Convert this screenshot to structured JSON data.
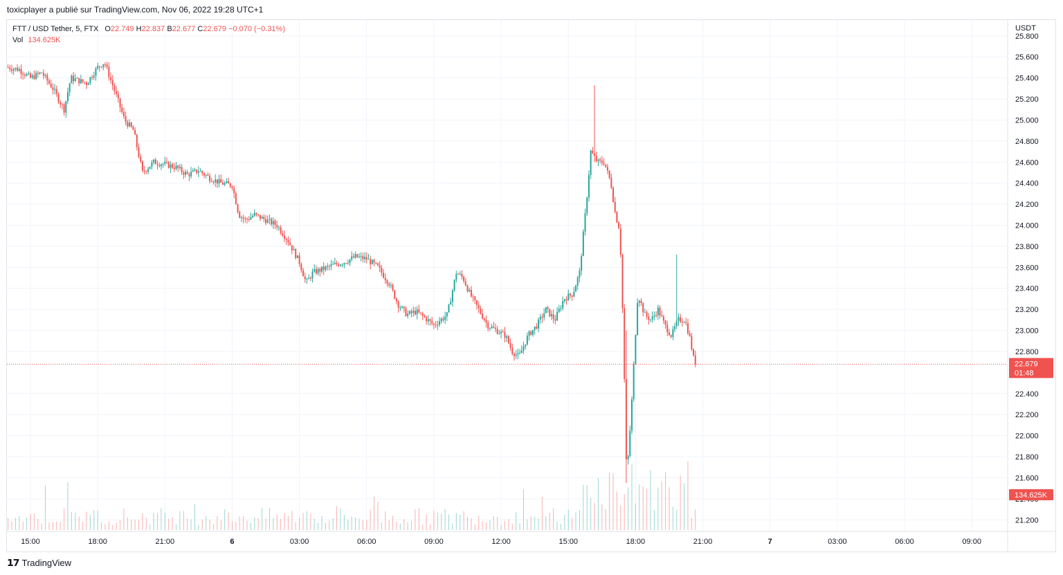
{
  "publisher_line": "toxicplayer a publié sur TradingView.com, Nov 06, 2022 19:28 UTC+1",
  "legend": {
    "symbol": "FTT / USD Tether, 5, FTX",
    "open_label": "O",
    "open": "22.749",
    "high_label": "H",
    "high": "22.837",
    "low_label": "B",
    "low": "22.677",
    "close_label": "C",
    "close": "22.679",
    "change": "−0.070 (−0.31%)",
    "vol_label": "Vol",
    "vol": "134.625K"
  },
  "price_tag": {
    "price": "22.679",
    "countdown": "01:48"
  },
  "volume_tag": "134.625K",
  "footer": {
    "logo": "𝟭𝟳",
    "brand": "TradingView"
  },
  "colors": {
    "up": "#26a69a",
    "down": "#ef5350",
    "grid": "#f0f3fa",
    "axis_text": "#131722",
    "tag_bg": "#ef5350"
  },
  "chart_data": {
    "type": "candlestick",
    "currency": "USDT",
    "y_ticks": [
      "25.800",
      "25.600",
      "25.400",
      "25.200",
      "25.000",
      "24.800",
      "24.600",
      "24.400",
      "24.200",
      "24.000",
      "23.800",
      "23.600",
      "23.400",
      "23.200",
      "23.000",
      "22.800",
      "22.400",
      "22.200",
      "22.000",
      "21.800",
      "21.600",
      "21.400",
      "21.200"
    ],
    "ylim": [
      21.09,
      25.95
    ],
    "x_ticks": [
      "15:00",
      "18:00",
      "21:00",
      "6",
      "03:00",
      "06:00",
      "09:00",
      "12:00",
      "15:00",
      "18:00",
      "21:00",
      "7",
      "03:00",
      "06:00",
      "09:00"
    ],
    "x_tick_hours": [
      15,
      18,
      21,
      24,
      27,
      30,
      33,
      36,
      39,
      42,
      45,
      48,
      51,
      54,
      57
    ],
    "xlim_hours": [
      13.95,
      58.6
    ],
    "last_price": 22.679,
    "price_path": [
      [
        14.0,
        25.5
      ],
      [
        14.5,
        25.48
      ],
      [
        15.0,
        25.4
      ],
      [
        15.5,
        25.45
      ],
      [
        16.0,
        25.3
      ],
      [
        16.5,
        25.1
      ],
      [
        16.8,
        25.4
      ],
      [
        17.5,
        25.35
      ],
      [
        18.0,
        25.5
      ],
      [
        18.3,
        25.55
      ],
      [
        18.8,
        25.25
      ],
      [
        19.2,
        25.0
      ],
      [
        19.6,
        24.9
      ],
      [
        20.0,
        24.5
      ],
      [
        20.5,
        24.6
      ],
      [
        21.0,
        24.58
      ],
      [
        21.5,
        24.55
      ],
      [
        22.0,
        24.48
      ],
      [
        22.5,
        24.52
      ],
      [
        23.0,
        24.45
      ],
      [
        23.5,
        24.4
      ],
      [
        24.0,
        24.38
      ],
      [
        24.3,
        24.1
      ],
      [
        24.6,
        24.05
      ],
      [
        25.0,
        24.1
      ],
      [
        25.5,
        24.05
      ],
      [
        26.0,
        24.0
      ],
      [
        26.5,
        23.85
      ],
      [
        27.0,
        23.65
      ],
      [
        27.3,
        23.45
      ],
      [
        27.6,
        23.55
      ],
      [
        28.0,
        23.58
      ],
      [
        28.5,
        23.62
      ],
      [
        29.0,
        23.65
      ],
      [
        29.5,
        23.7
      ],
      [
        30.0,
        23.68
      ],
      [
        30.5,
        23.6
      ],
      [
        31.0,
        23.45
      ],
      [
        31.4,
        23.25
      ],
      [
        31.8,
        23.15
      ],
      [
        32.2,
        23.18
      ],
      [
        32.6,
        23.12
      ],
      [
        33.0,
        23.05
      ],
      [
        33.3,
        23.1
      ],
      [
        33.6,
        23.15
      ],
      [
        34.0,
        23.55
      ],
      [
        34.3,
        23.5
      ],
      [
        34.6,
        23.35
      ],
      [
        35.0,
        23.2
      ],
      [
        35.4,
        23.05
      ],
      [
        35.8,
        23.0
      ],
      [
        36.2,
        22.95
      ],
      [
        36.5,
        22.8
      ],
      [
        36.8,
        22.75
      ],
      [
        37.2,
        22.95
      ],
      [
        37.6,
        23.05
      ],
      [
        38.0,
        23.2
      ],
      [
        38.4,
        23.1
      ],
      [
        38.8,
        23.3
      ],
      [
        39.2,
        23.35
      ],
      [
        39.5,
        23.55
      ],
      [
        39.8,
        24.2
      ],
      [
        40.0,
        24.7
      ],
      [
        40.3,
        24.6
      ],
      [
        40.6,
        24.6
      ],
      [
        40.9,
        24.4
      ],
      [
        41.1,
        24.1
      ],
      [
        41.3,
        23.95
      ],
      [
        41.45,
        23.0
      ],
      [
        41.6,
        21.6
      ],
      [
        41.8,
        22.2
      ],
      [
        41.95,
        22.8
      ],
      [
        42.1,
        23.35
      ],
      [
        42.4,
        23.15
      ],
      [
        42.7,
        23.1
      ],
      [
        43.0,
        23.2
      ],
      [
        43.3,
        23.05
      ],
      [
        43.6,
        22.95
      ],
      [
        43.9,
        23.1
      ],
      [
        44.2,
        23.1
      ],
      [
        44.4,
        22.95
      ],
      [
        44.6,
        22.72
      ],
      [
        44.7,
        22.679
      ]
    ],
    "spikes": [
      {
        "h": 40.2,
        "high": 25.33,
        "low": 24.6
      },
      {
        "h": 41.6,
        "high": 23.0,
        "low": 21.55
      },
      {
        "h": 43.85,
        "high": 23.72,
        "low": 23.05
      }
    ],
    "volume_range_k": [
      0,
      800
    ]
  }
}
